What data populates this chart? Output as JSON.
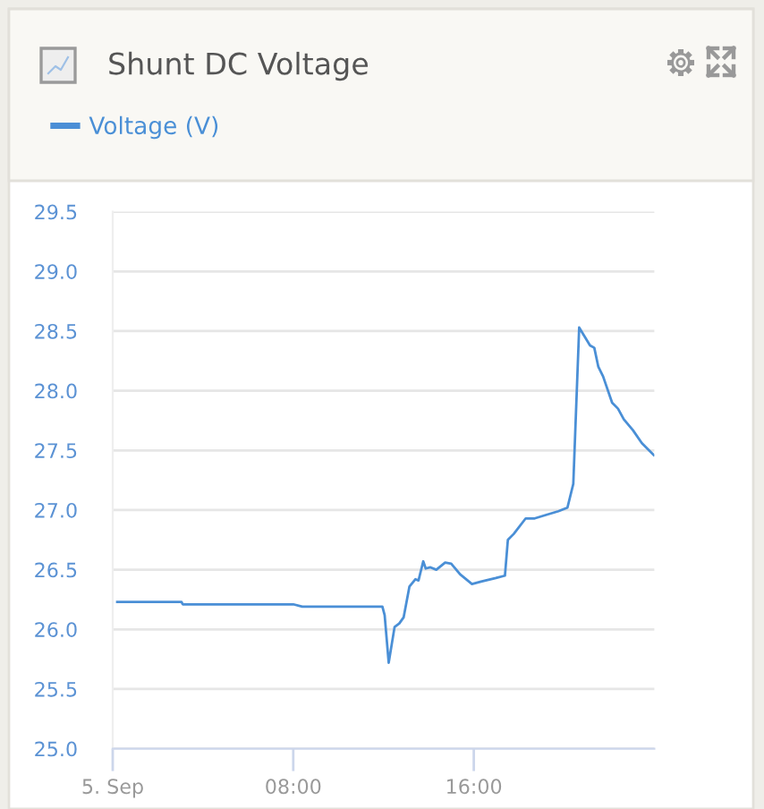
{
  "chart_data": {
    "type": "line",
    "title": "Shunt DC Voltage",
    "x": [
      0.2,
      3.05,
      3.1,
      8.0,
      8.4,
      11.95,
      12.05,
      12.23,
      12.49,
      12.7,
      12.89,
      13.15,
      13.41,
      13.55,
      13.76,
      13.87,
      14.08,
      14.34,
      14.73,
      15.0,
      15.4,
      15.92,
      16.32,
      16.98,
      17.38,
      17.51,
      17.77,
      18.3,
      18.7,
      19.22,
      19.75,
      20.15,
      20.41,
      20.67,
      21.15,
      21.34,
      21.52,
      21.73,
      22.13,
      22.39,
      22.65,
      23.05,
      23.45,
      23.98
    ],
    "series": [
      {
        "name": "Voltage (V)",
        "color": "#4a8fd6",
        "values": [
          26.23,
          26.23,
          26.21,
          26.21,
          26.19,
          26.19,
          26.12,
          25.72,
          26.02,
          26.05,
          26.1,
          26.36,
          26.42,
          26.41,
          26.57,
          26.51,
          26.52,
          26.5,
          26.56,
          26.55,
          26.46,
          26.38,
          26.4,
          26.43,
          26.45,
          26.75,
          26.8,
          26.93,
          26.93,
          26.96,
          26.99,
          27.02,
          27.22,
          28.53,
          28.38,
          28.36,
          28.2,
          28.12,
          27.9,
          27.85,
          27.76,
          27.67,
          27.56,
          27.46
        ]
      }
    ],
    "xlim": [
      0,
      24
    ],
    "xticks": [
      {
        "value": 0,
        "label": "5. Sep"
      },
      {
        "value": 8,
        "label": "08:00"
      },
      {
        "value": 16,
        "label": "16:00"
      }
    ],
    "ylim": [
      25,
      29.5
    ],
    "yticks": [
      {
        "value": 25,
        "label": "25.0"
      },
      25.5,
      {
        "value": 26,
        "label": "26.0"
      },
      26.5,
      {
        "value": 27,
        "label": "27.0"
      },
      27.5,
      {
        "value": 28,
        "label": "28.0"
      },
      28.5,
      {
        "value": 29,
        "label": "29.0"
      },
      29.5
    ],
    "grid": "y",
    "legend": "top left",
    "marker": "none",
    "line_style": "solid"
  }
}
